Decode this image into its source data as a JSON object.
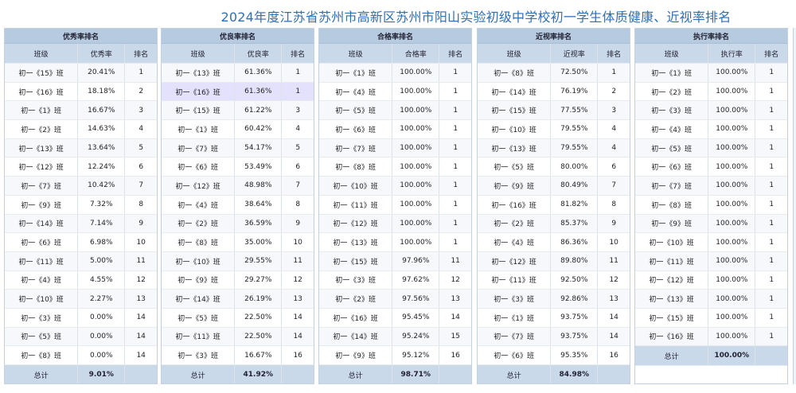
{
  "title": "2024年度江苏省苏州市高新区苏州市阳山实验初级中学校初一学生体质健康、近视率排名",
  "panels": [
    {
      "header": "优秀率排名",
      "columns": [
        "班级",
        "优秀率",
        "排名"
      ],
      "rows": [
        [
          "初一《15》班",
          "20.41%",
          "1"
        ],
        [
          "初一《16》班",
          "18.18%",
          "2"
        ],
        [
          "初一《1》班",
          "16.67%",
          "3"
        ],
        [
          "初一《2》班",
          "14.63%",
          "4"
        ],
        [
          "初一《13》班",
          "13.64%",
          "5"
        ],
        [
          "初一《12》班",
          "12.24%",
          "6"
        ],
        [
          "初一《7》班",
          "10.42%",
          "7"
        ],
        [
          "初一《9》班",
          "7.32%",
          "8"
        ],
        [
          "初一《14》班",
          "7.14%",
          "9"
        ],
        [
          "初一《6》班",
          "6.98%",
          "10"
        ],
        [
          "初一《11》班",
          "5.00%",
          "11"
        ],
        [
          "初一《4》班",
          "4.55%",
          "12"
        ],
        [
          "初一《10》班",
          "2.27%",
          "13"
        ],
        [
          "初一《3》班",
          "0.00%",
          "14"
        ],
        [
          "初一《5》班",
          "0.00%",
          "14"
        ],
        [
          "初一《8》班",
          "0.00%",
          "14"
        ]
      ],
      "total_label": "总计",
      "total_value": "9.01%"
    },
    {
      "header": "优良率排名",
      "columns": [
        "班级",
        "优良率",
        "排名"
      ],
      "rows": [
        [
          "初一《13》班",
          "61.36%",
          "1"
        ],
        [
          "初一《16》班",
          "61.36%",
          "1"
        ],
        [
          "初一《15》班",
          "61.22%",
          "3"
        ],
        [
          "初一《1》班",
          "60.42%",
          "4"
        ],
        [
          "初一《7》班",
          "54.17%",
          "5"
        ],
        [
          "初一《6》班",
          "53.49%",
          "6"
        ],
        [
          "初一《12》班",
          "48.98%",
          "7"
        ],
        [
          "初一《4》班",
          "38.64%",
          "8"
        ],
        [
          "初一《2》班",
          "36.59%",
          "9"
        ],
        [
          "初一《8》班",
          "35.00%",
          "10"
        ],
        [
          "初一《10》班",
          "29.55%",
          "11"
        ],
        [
          "初一《9》班",
          "29.27%",
          "12"
        ],
        [
          "初一《14》班",
          "26.19%",
          "13"
        ],
        [
          "初一《5》班",
          "22.50%",
          "14"
        ],
        [
          "初一《11》班",
          "22.50%",
          "14"
        ],
        [
          "初一《3》班",
          "16.67%",
          "16"
        ]
      ],
      "total_label": "总计",
      "total_value": "41.92%"
    },
    {
      "header": "合格率排名",
      "columns": [
        "班级",
        "合格率",
        "排名"
      ],
      "rows": [
        [
          "初一《1》班",
          "100.00%",
          "1"
        ],
        [
          "初一《4》班",
          "100.00%",
          "1"
        ],
        [
          "初一《5》班",
          "100.00%",
          "1"
        ],
        [
          "初一《6》班",
          "100.00%",
          "1"
        ],
        [
          "初一《7》班",
          "100.00%",
          "1"
        ],
        [
          "初一《8》班",
          "100.00%",
          "1"
        ],
        [
          "初一《10》班",
          "100.00%",
          "1"
        ],
        [
          "初一《11》班",
          "100.00%",
          "1"
        ],
        [
          "初一《12》班",
          "100.00%",
          "1"
        ],
        [
          "初一《13》班",
          "100.00%",
          "1"
        ],
        [
          "初一《15》班",
          "97.96%",
          "11"
        ],
        [
          "初一《3》班",
          "97.62%",
          "12"
        ],
        [
          "初一《2》班",
          "97.56%",
          "13"
        ],
        [
          "初一《16》班",
          "95.45%",
          "14"
        ],
        [
          "初一《14》班",
          "95.24%",
          "15"
        ],
        [
          "初一《9》班",
          "95.12%",
          "16"
        ]
      ],
      "total_label": "总计",
      "total_value": "98.71%"
    },
    {
      "header": "近视率排名",
      "columns": [
        "班级",
        "近视率",
        "排名"
      ],
      "rows": [
        [
          "初一《8》班",
          "72.50%",
          "1"
        ],
        [
          "初一《14》班",
          "76.19%",
          "2"
        ],
        [
          "初一《15》班",
          "77.55%",
          "3"
        ],
        [
          "初一《10》班",
          "79.55%",
          "4"
        ],
        [
          "初一《13》班",
          "79.55%",
          "4"
        ],
        [
          "初一《5》班",
          "80.00%",
          "6"
        ],
        [
          "初一《9》班",
          "80.49%",
          "7"
        ],
        [
          "初一《16》班",
          "81.82%",
          "8"
        ],
        [
          "初一《2》班",
          "85.37%",
          "9"
        ],
        [
          "初一《4》班",
          "86.36%",
          "10"
        ],
        [
          "初一《12》班",
          "89.80%",
          "11"
        ],
        [
          "初一《11》班",
          "92.50%",
          "12"
        ],
        [
          "初一《3》班",
          "92.86%",
          "13"
        ],
        [
          "初一《1》班",
          "93.75%",
          "14"
        ],
        [
          "初一《7》班",
          "93.75%",
          "14"
        ],
        [
          "初一《6》班",
          "95.35%",
          "16"
        ]
      ],
      "total_label": "总计",
      "total_value": "84.98%"
    },
    {
      "header": "执行率排名",
      "columns": [
        "班级",
        "执行率",
        "排名"
      ],
      "rows": [
        [
          "初一《1》班",
          "100.00%",
          "1"
        ],
        [
          "初一《2》班",
          "100.00%",
          "1"
        ],
        [
          "初一《3》班",
          "100.00%",
          "1"
        ],
        [
          "初一《4》班",
          "100.00%",
          "1"
        ],
        [
          "初一《5》班",
          "100.00%",
          "1"
        ],
        [
          "初一《6》班",
          "100.00%",
          "1"
        ],
        [
          "初一《7》班",
          "100.00%",
          "1"
        ],
        [
          "初一《8》班",
          "100.00%",
          "1"
        ],
        [
          "初一《9》班",
          "100.00%",
          "1"
        ],
        [
          "初一《10》班",
          "100.00%",
          "1"
        ],
        [
          "初一《11》班",
          "100.00%",
          "1"
        ],
        [
          "初一《12》班",
          "100.00%",
          "1"
        ],
        [
          "初一《13》班",
          "100.00%",
          "1"
        ],
        [
          "初一《15》班",
          "100.00%",
          "1"
        ],
        [
          "初一《16》班",
          "100.00%",
          "1"
        ]
      ],
      "total_label": "总计",
      "total_value": "100.00%"
    }
  ]
}
